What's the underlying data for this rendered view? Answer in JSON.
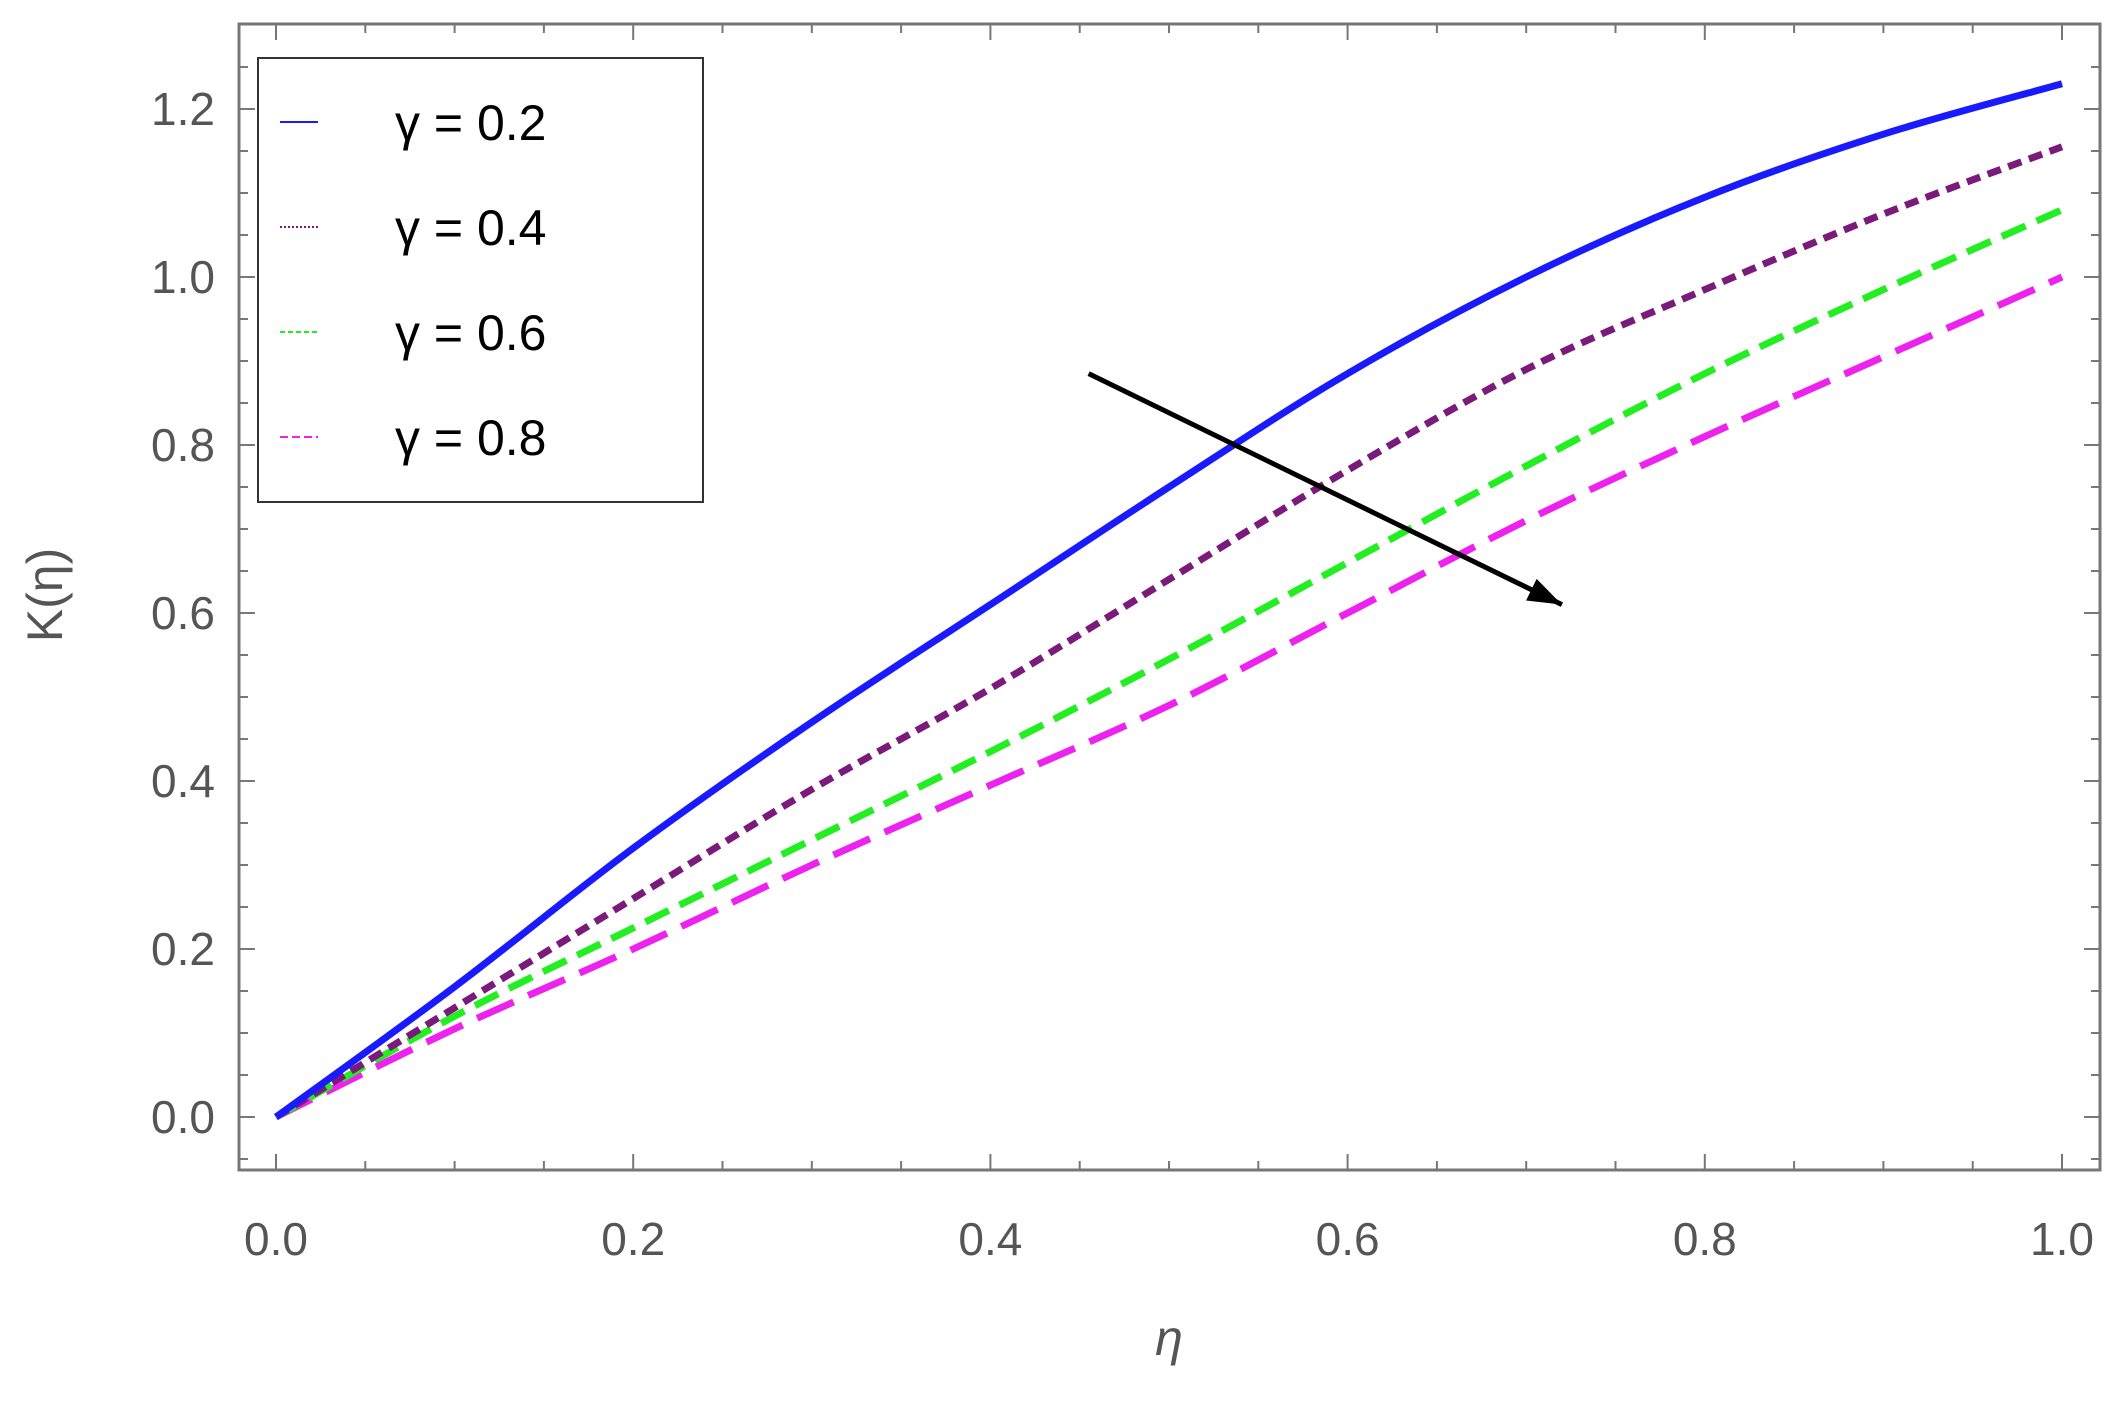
{
  "chart_data": {
    "type": "line",
    "xlabel": "η",
    "ylabel": "K(η)",
    "xlim": [
      0.0,
      1.0
    ],
    "ylim": [
      -0.06,
      1.3
    ],
    "x_ticks": [
      {
        "value": 0.0,
        "label": "0.0"
      },
      {
        "value": 0.2,
        "label": "0.2"
      },
      {
        "value": 0.4,
        "label": "0.4"
      },
      {
        "value": 0.6,
        "label": "0.6"
      },
      {
        "value": 0.8,
        "label": "0.8"
      },
      {
        "value": 1.0,
        "label": "1.0"
      }
    ],
    "y_ticks": [
      {
        "value": 0.0,
        "label": "0.0"
      },
      {
        "value": 0.2,
        "label": "0.2"
      },
      {
        "value": 0.4,
        "label": "0.4"
      },
      {
        "value": 0.6,
        "label": "0.6"
      },
      {
        "value": 0.8,
        "label": "0.8"
      },
      {
        "value": 1.0,
        "label": "1.0"
      },
      {
        "value": 1.2,
        "label": "1.2"
      }
    ],
    "grid": false,
    "legend_position": "top-left",
    "x": [
      0.0,
      0.1,
      0.2,
      0.3,
      0.4,
      0.5,
      0.6,
      0.7,
      0.8,
      0.9,
      1.0
    ],
    "series": [
      {
        "name": "γ = 0.2",
        "color": "#1a1aff",
        "dash": "solid",
        "values": [
          0.0,
          0.155,
          0.32,
          0.47,
          0.61,
          0.75,
          0.885,
          1.0,
          1.095,
          1.17,
          1.23
        ]
      },
      {
        "name": "γ = 0.4",
        "color": "#7a1a7a",
        "dash": "short-dash",
        "values": [
          0.0,
          0.13,
          0.26,
          0.39,
          0.51,
          0.64,
          0.77,
          0.89,
          0.985,
          1.075,
          1.155
        ]
      },
      {
        "name": "γ = 0.6",
        "color": "#22ee22",
        "dash": "medium-dash",
        "values": [
          0.0,
          0.12,
          0.225,
          0.33,
          0.435,
          0.545,
          0.66,
          0.775,
          0.885,
          0.985,
          1.08
        ]
      },
      {
        "name": "γ = 0.8",
        "color": "#ee22ee",
        "dash": "long-dash",
        "values": [
          0.0,
          0.105,
          0.2,
          0.3,
          0.395,
          0.49,
          0.6,
          0.71,
          0.81,
          0.905,
          1.0
        ]
      }
    ],
    "annotations": [
      {
        "type": "arrow",
        "from": [
          0.455,
          0.885
        ],
        "to": [
          0.72,
          0.61
        ],
        "color": "#000000"
      }
    ]
  }
}
